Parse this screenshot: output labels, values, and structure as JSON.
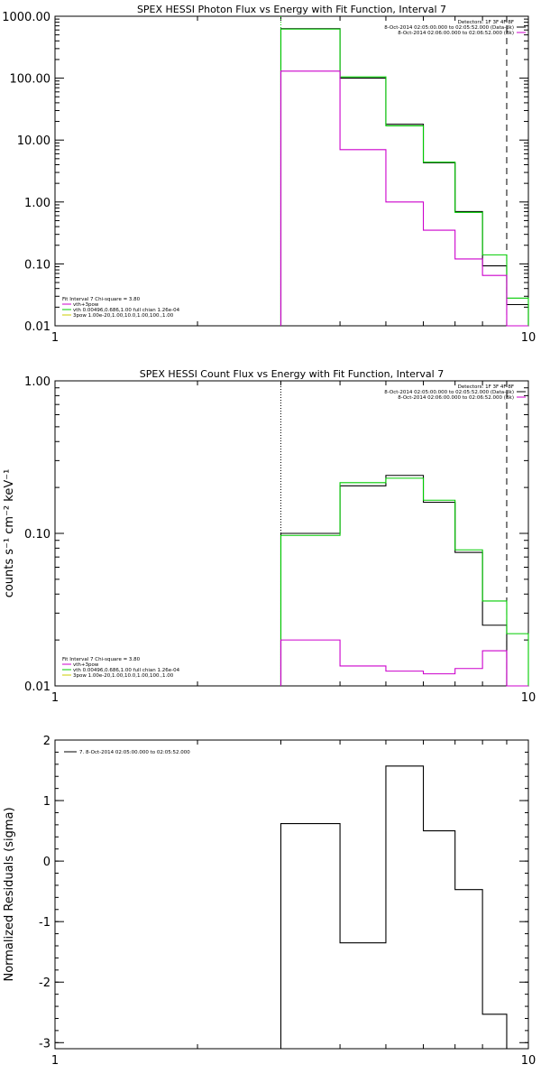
{
  "chart_data": [
    {
      "type": "line",
      "title": "SPEX HESSI Photon Flux vs Energy with Fit Function, Interval 7",
      "xscale": "log",
      "yscale": "log",
      "xlim": [
        1,
        10
      ],
      "ylim": [
        0.01,
        1000
      ],
      "xticks": [
        "1",
        "10"
      ],
      "yticks": [
        "0.01",
        "0.10",
        "1.00",
        "10.00",
        "100.00",
        "1000.00"
      ],
      "xlabel": "",
      "ylabel": "",
      "bin_edges": [
        3,
        4,
        5,
        6,
        7,
        8,
        9,
        10
      ],
      "series": [
        {
          "color": "#000000",
          "values": [
            630,
            100,
            18,
            4.3,
            0.7,
            0.093,
            0.022
          ]
        },
        {
          "color": "#00cc00",
          "values": [
            620,
            105,
            17,
            4.4,
            0.68,
            0.14,
            0.028
          ]
        },
        {
          "color": "#cc00cc",
          "values": [
            130,
            7,
            1.0,
            0.35,
            0.12,
            0.065,
            0.0
          ]
        }
      ],
      "vlines": [
        {
          "x": 3,
          "style": "dotted",
          "color": "#00cc00"
        },
        {
          "x": 9,
          "style": "dashed",
          "color": "#000000"
        }
      ],
      "header_lines": [
        "Detectors: 1F 3F 4F 8F",
        "8-Oct-2014 02:05:00.000 to 02:05:52.000 (Data-Bk)",
        "8-Oct-2014 02:06:00.000 to 02:06:52.000 (Bk)"
      ],
      "fit_lines": [
        "Fit Interval 7   Chi-square = 3.80",
        "vth+3pow",
        "vth 0.00496,0.686,1.00  full chian 1.26e-04",
        "3pow 1.00e-20,1.00,10.0,1.00,100.,1.00"
      ]
    },
    {
      "type": "line",
      "title": "SPEX HESSI Count Flux vs Energy with Fit Function, Interval 7",
      "xscale": "log",
      "yscale": "log",
      "xlim": [
        1,
        10
      ],
      "ylim": [
        0.01,
        1.0
      ],
      "xticks": [
        "1",
        "10"
      ],
      "yticks": [
        "0.01",
        "0.10",
        "1.00"
      ],
      "xlabel": "",
      "ylabel": "counts s⁻¹ cm⁻² keV⁻¹",
      "bin_edges": [
        3,
        4,
        5,
        6,
        7,
        8,
        9,
        10
      ],
      "series": [
        {
          "color": "#000000",
          "values": [
            0.1,
            0.205,
            0.24,
            0.16,
            0.075,
            0.025,
            0.0
          ]
        },
        {
          "color": "#00cc00",
          "values": [
            0.097,
            0.215,
            0.23,
            0.165,
            0.078,
            0.036,
            0.022
          ]
        },
        {
          "color": "#cc00cc",
          "values": [
            0.02,
            0.0135,
            0.0125,
            0.012,
            0.013,
            0.017,
            0.0
          ]
        }
      ],
      "vlines": [
        {
          "x": 3,
          "style": "dotted",
          "color": "#000000"
        },
        {
          "x": 9,
          "style": "dashed",
          "color": "#000000"
        }
      ],
      "header_lines": [
        "Detectors: 1F 3F 4F 8F",
        "8-Oct-2014 02:05:00.000 to 02:05:52.000 (Data-Bk)",
        "8-Oct-2014 02:06:00.000 to 02:06:52.000 (Bk)"
      ],
      "fit_lines": [
        "Fit Interval 7   Chi-square = 3.80",
        "vth+3pow",
        "vth 0.00496,0.686,1.00  full chian 1.26e-04",
        "3pow 1.00e-20,1.00,10.0,1.00,100.,1.00"
      ]
    },
    {
      "type": "line",
      "title": "",
      "xscale": "log",
      "yscale": "linear",
      "xlim": [
        1,
        10
      ],
      "ylim": [
        -3.1,
        2
      ],
      "xticks": [
        "1",
        "10"
      ],
      "yticks": [
        "-3",
        "-2",
        "-1",
        "0",
        "1",
        "2"
      ],
      "xlabel": "",
      "ylabel": "Normalized Residuals (sigma)",
      "bin_edges": [
        3,
        4,
        5,
        6,
        7,
        8,
        9
      ],
      "series": [
        {
          "color": "#000000",
          "values": [
            0.62,
            -1.35,
            1.57,
            0.5,
            -0.47,
            -2.53
          ]
        }
      ],
      "legend_line": "7.  8-Oct-2014 02:05:00.000 to 02:05:52.000"
    }
  ]
}
